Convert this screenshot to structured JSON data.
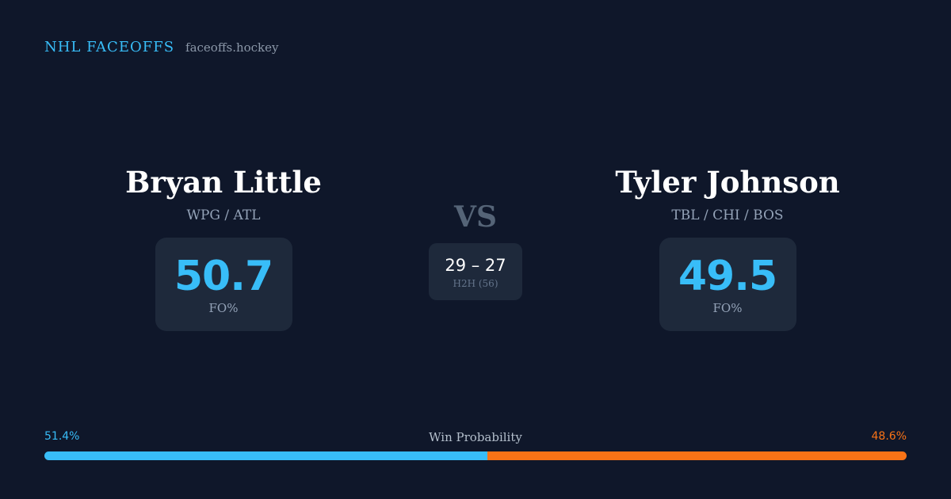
{
  "brand": {
    "name": "NHL FACEOFFS",
    "url": "faceoffs.hockey"
  },
  "player1": {
    "name": "Bryan Little",
    "teams": "WPG / ATL",
    "fo_value": "50.7",
    "fo_label": "FO%"
  },
  "player2": {
    "name": "Tyler Johnson",
    "teams": "TBL / CHI / BOS",
    "fo_value": "49.5",
    "fo_label": "FO%"
  },
  "versus": {
    "label": "VS",
    "score": "29 – 27",
    "h2h_label": "H2H (56)"
  },
  "win_probability": {
    "title": "Win Probability",
    "left_text": "51.4%",
    "right_text": "48.6%",
    "left_value": 51.4,
    "right_value": 48.6,
    "left_color": "#38bdf8",
    "right_color": "#f97316"
  }
}
